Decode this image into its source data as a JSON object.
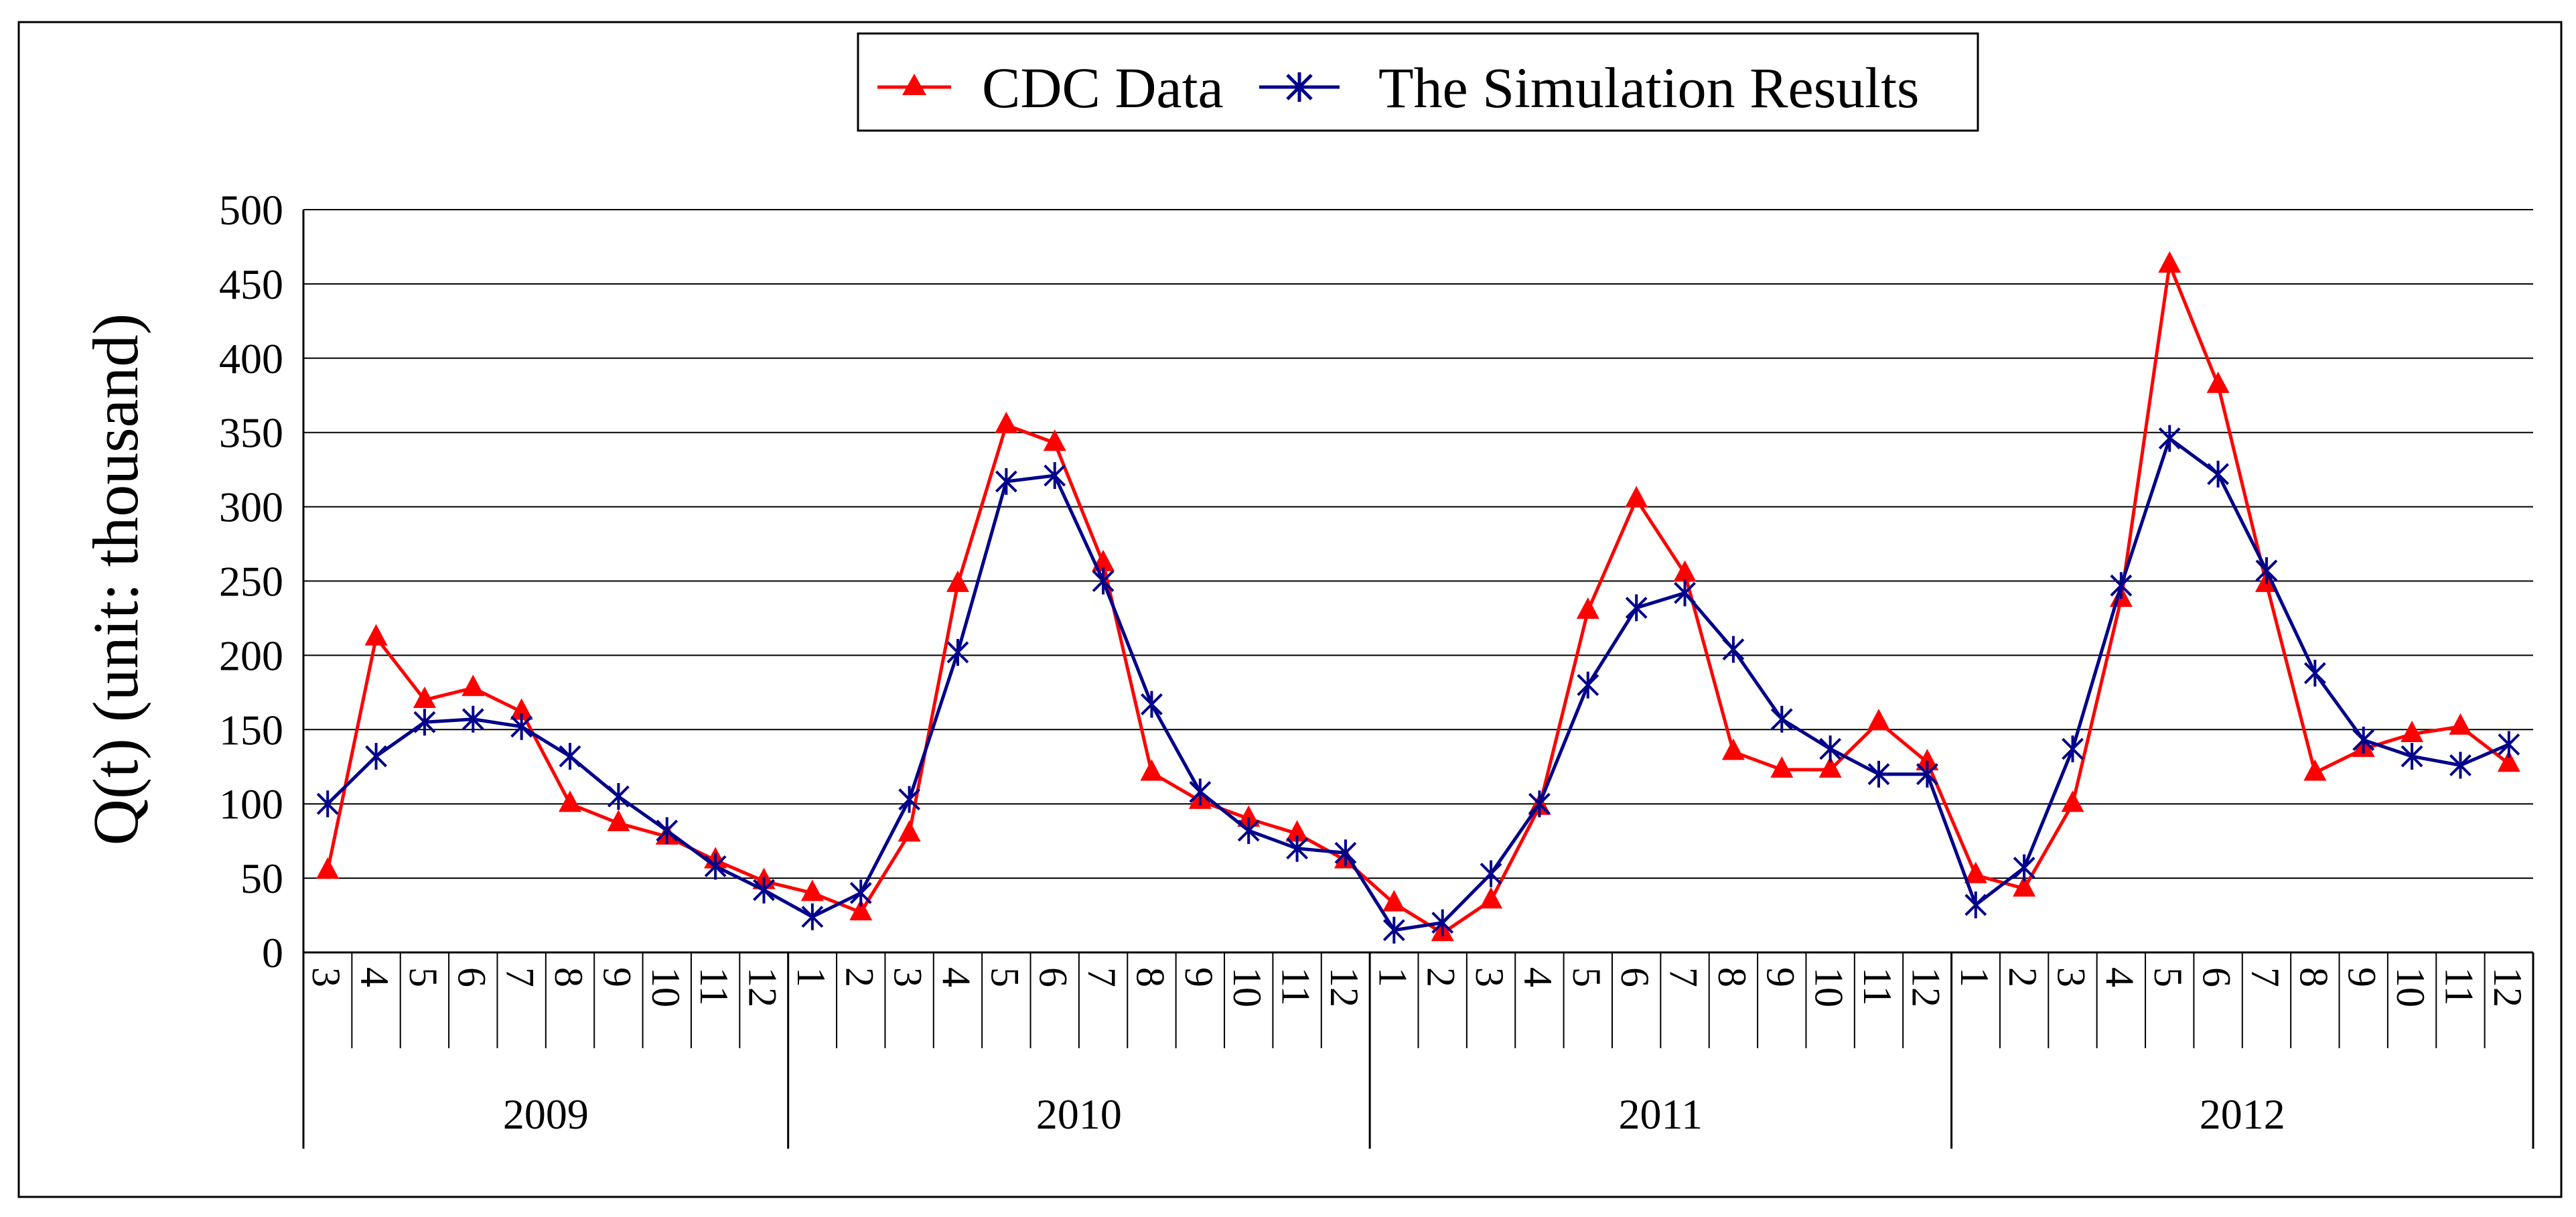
{
  "chart_data": {
    "type": "line",
    "title": "",
    "ylabel": "Q(t) (unit: thousand)",
    "xlabel": "",
    "ylim": [
      0,
      500
    ],
    "yticks": [
      0,
      50,
      100,
      150,
      200,
      250,
      300,
      350,
      400,
      450,
      500
    ],
    "grid": true,
    "legend_position": "top-center",
    "years": [
      {
        "label": "2009",
        "months": [
          "3",
          "4",
          "5",
          "6",
          "7",
          "8",
          "9",
          "10",
          "11",
          "12"
        ]
      },
      {
        "label": "2010",
        "months": [
          "1",
          "2",
          "3",
          "4",
          "5",
          "6",
          "7",
          "8",
          "9",
          "10",
          "11",
          "12"
        ]
      },
      {
        "label": "2011",
        "months": [
          "1",
          "2",
          "3",
          "4",
          "5",
          "6",
          "7",
          "8",
          "9",
          "10",
          "11",
          "12"
        ]
      },
      {
        "label": "2012",
        "months": [
          "1",
          "2",
          "3",
          "4",
          "5",
          "6",
          "7",
          "8",
          "9",
          "10",
          "11",
          "12"
        ]
      }
    ],
    "series": [
      {
        "name": "CDC Data",
        "color": "#ff0000",
        "marker": "triangle",
        "values": [
          55,
          212,
          170,
          178,
          162,
          100,
          87,
          78,
          62,
          48,
          40,
          27,
          80,
          248,
          355,
          343,
          262,
          121,
          102,
          90,
          80,
          62,
          33,
          13,
          35,
          98,
          230,
          305,
          255,
          135,
          123,
          123,
          155,
          128,
          52,
          43,
          100,
          238,
          463,
          382,
          248,
          121,
          137,
          147,
          152,
          127
        ]
      },
      {
        "name": "The Simulation Results",
        "color": "#00008b",
        "marker": "asterisk",
        "values": [
          100,
          132,
          155,
          157,
          152,
          132,
          105,
          82,
          58,
          42,
          24,
          40,
          103,
          202,
          317,
          321,
          250,
          167,
          108,
          82,
          70,
          67,
          15,
          20,
          53,
          100,
          180,
          232,
          242,
          204,
          157,
          137,
          120,
          120,
          32,
          57,
          137,
          247,
          346,
          322,
          257,
          188,
          143,
          132,
          126,
          140
        ]
      }
    ]
  }
}
